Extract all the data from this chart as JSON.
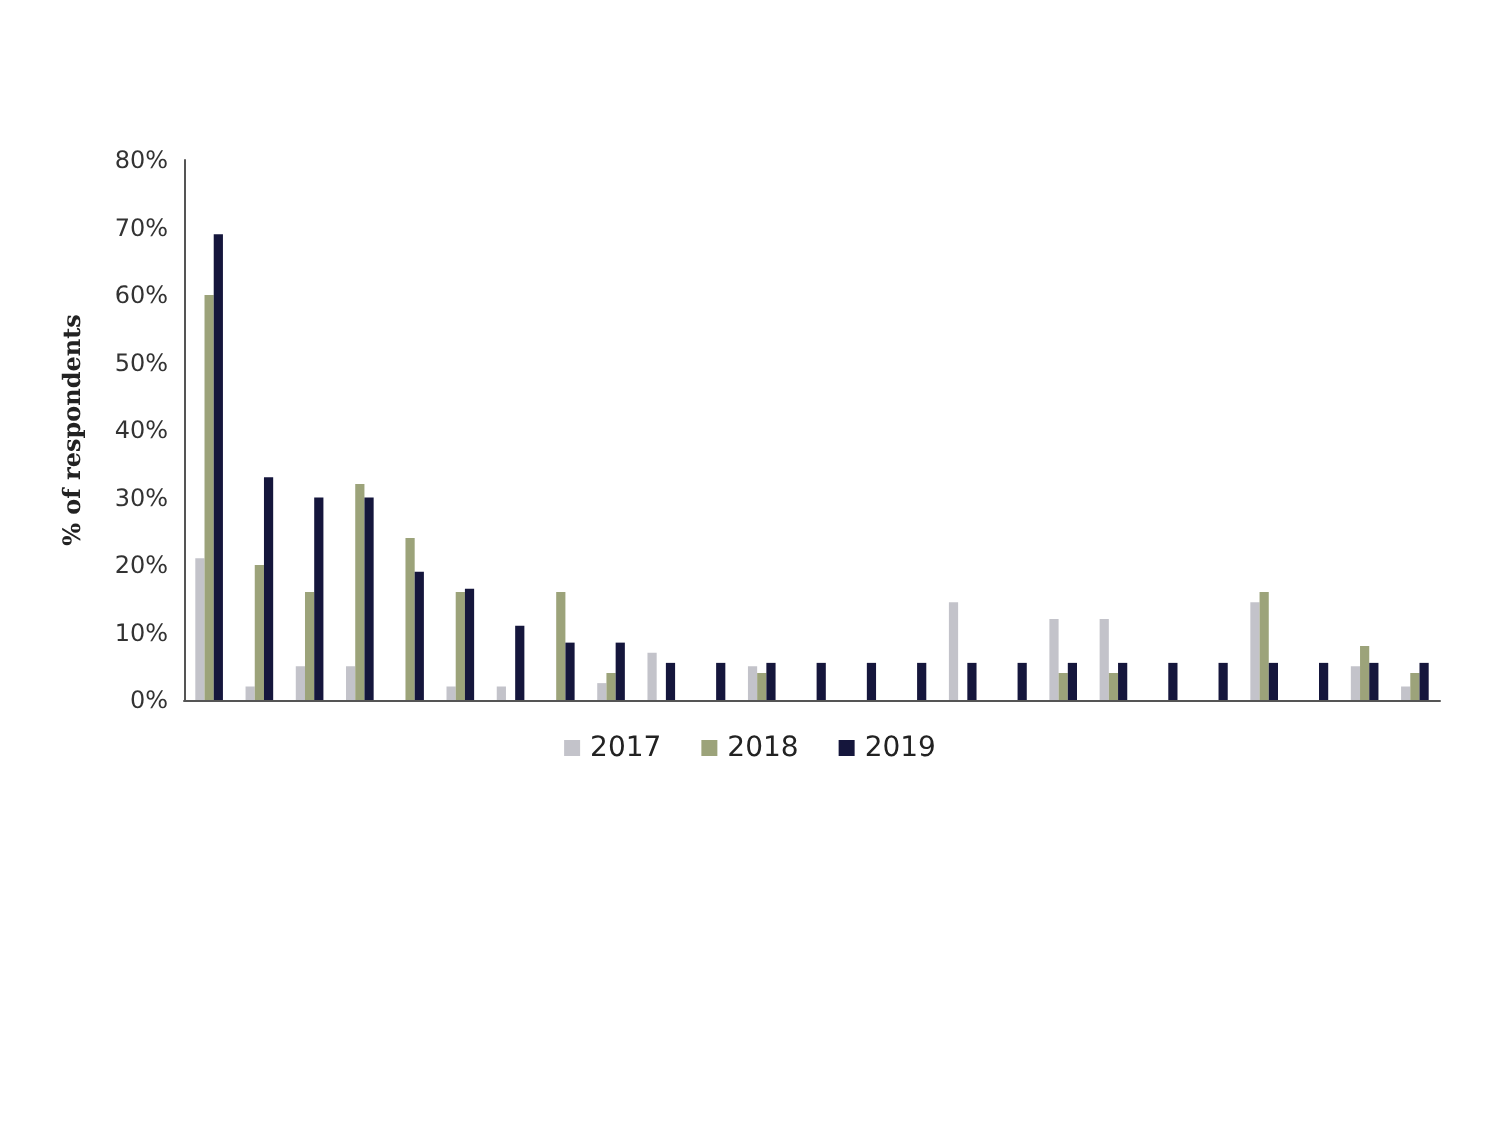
{
  "chart_data": {
    "type": "bar",
    "ylabel": "% of respondents",
    "categories": [
      null,
      null,
      null,
      null,
      null,
      null,
      null,
      null,
      null,
      null,
      null,
      null,
      null,
      null,
      null,
      null,
      null,
      null,
      null,
      null,
      null,
      null,
      null,
      null,
      null
    ],
    "series": [
      {
        "name": "2017",
        "color": "#c3c3ca",
        "values": [
          21,
          2,
          5,
          5,
          null,
          2,
          2,
          null,
          2.5,
          7,
          null,
          5,
          null,
          null,
          null,
          14.5,
          null,
          12,
          12,
          null,
          null,
          14.5,
          null,
          5,
          2
        ]
      },
      {
        "name": "2018",
        "color": "#9ca37a",
        "values": [
          60,
          20,
          16,
          32,
          24,
          16,
          null,
          16,
          4,
          null,
          null,
          4,
          null,
          null,
          null,
          null,
          null,
          4,
          4,
          null,
          null,
          16,
          null,
          8,
          4
        ]
      },
      {
        "name": "2019",
        "color": "#15163c",
        "values": [
          69,
          33,
          30,
          30,
          19,
          16.5,
          11,
          8.5,
          8.5,
          5.5,
          5.5,
          5.5,
          5.5,
          5.5,
          5.5,
          5.5,
          5.5,
          5.5,
          5.5,
          5.5,
          5.5,
          5.5,
          5.5,
          5.5,
          5.5
        ]
      }
    ],
    "ylim": [
      0,
      80
    ],
    "yticks": [
      {
        "value": 0,
        "label": "0%"
      },
      {
        "value": 10,
        "label": "10%"
      },
      {
        "value": 20,
        "label": "20%"
      },
      {
        "value": 30,
        "label": "30%"
      },
      {
        "value": 40,
        "label": "40%"
      },
      {
        "value": 50,
        "label": "50%"
      },
      {
        "value": 60,
        "label": "60%"
      },
      {
        "value": 70,
        "label": "70%"
      },
      {
        "value": 80,
        "label": "80%"
      }
    ],
    "grid": false,
    "legend": "bottom"
  }
}
